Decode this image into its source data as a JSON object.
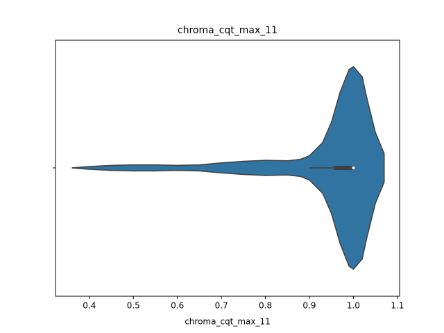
{
  "chart_data": {
    "type": "violin",
    "title": "chroma_cqt_max_11",
    "xlabel": "chroma_cqt_max_11",
    "categories": [
      null
    ],
    "color": "#3274a1",
    "violin": {
      "x": [
        0.36,
        0.4,
        0.45,
        0.5,
        0.55,
        0.6,
        0.65,
        0.7,
        0.75,
        0.8,
        0.85,
        0.88,
        0.9,
        0.93,
        0.95,
        0.97,
        0.99,
        1.0,
        1.02,
        1.03,
        1.05,
        1.07
      ],
      "density": [
        0,
        0.014,
        0.025,
        0.03,
        0.03,
        0.025,
        0.03,
        0.05,
        0.065,
        0.075,
        0.07,
        0.085,
        0.12,
        0.25,
        0.45,
        0.75,
        0.97,
        1.0,
        0.9,
        0.7,
        0.35,
        0.14
      ]
    },
    "box": {
      "whisker_low": 0.9,
      "q1": 0.955,
      "median": 1.0,
      "q3": 1.0,
      "whisker_high": 1.0
    },
    "xlim": [
      0.323,
      1.105
    ],
    "xticks": [
      0.4,
      0.5,
      0.6,
      0.7,
      0.8,
      0.9,
      {
        "value": 1.0,
        "label": "1.0"
      },
      1.1
    ]
  }
}
